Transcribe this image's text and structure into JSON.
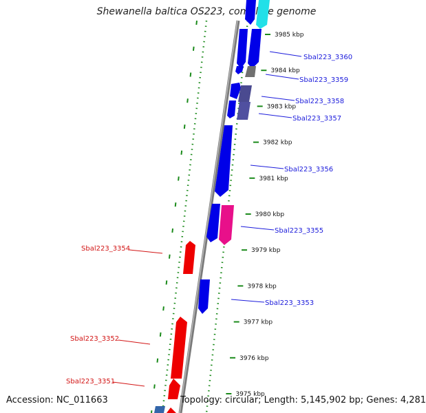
{
  "title": "Shewanella baltica OS223, complete genome",
  "footer": {
    "accession": "Accession: NC_011663",
    "stats": "Topology: circular; Length: 5,145,902 bp; Genes: 4,281"
  },
  "scale_ticks": [
    "3985 kbp",
    "3984 kbp",
    "3983 kbp",
    "3982 kbp",
    "3981 kbp",
    "3980 kbp",
    "3979 kbp",
    "3978 kbp",
    "3977 kbp",
    "3976 kbp",
    "3975 kbp"
  ],
  "gene_labels": {
    "forward": [
      "Sbal223_3360",
      "Sbal223_3359",
      "Sbal223_3358",
      "Sbal223_3357",
      "Sbal223_3356",
      "Sbal223_3355",
      "Sbal223_3353"
    ],
    "reverse": [
      "Sbal223_3354",
      "Sbal223_3352",
      "Sbal223_3351"
    ]
  },
  "colors": {
    "forward_gene": "#0000e8",
    "reverse_gene": "#ee0000",
    "pink_gene": "#e8108a",
    "cyan_gene": "#22e0e8",
    "gray_gene": "#707070",
    "slate_gene": "#4a4a90",
    "label_blue": "#1a1adb",
    "label_red": "#d21414",
    "backbone": "#808080",
    "dotted_ring": "#1a8a1a"
  }
}
